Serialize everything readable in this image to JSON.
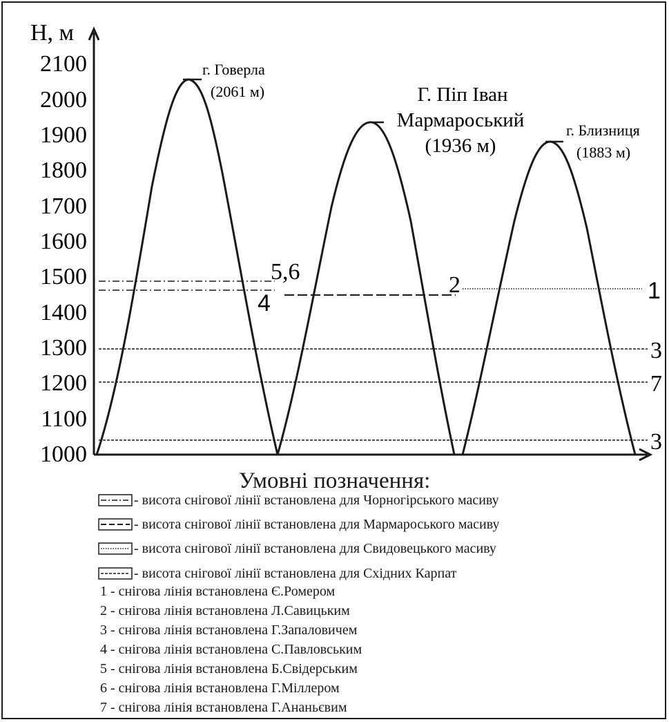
{
  "axis": {
    "y_title": "H, м",
    "y_ticks": [
      "2100",
      "2000",
      "1900",
      "1800",
      "1700",
      "1600",
      "1500",
      "1400",
      "1300",
      "1200",
      "1100",
      "1000"
    ]
  },
  "peaks": [
    {
      "name": "г. Говерла",
      "height_label": "(2061 м)",
      "height_m": 2061
    },
    {
      "name_line1": "Г. Піп Іван",
      "name_line2": "Мармароський",
      "height_label": "(1936 м)",
      "height_m": 1936
    },
    {
      "name": "г. Близниця",
      "height_label": "(1883 м)",
      "height_m": 1883
    }
  ],
  "snowlines": [
    {
      "marker": "5,6",
      "heights_m": [
        1485,
        1460
      ],
      "style": "dash-dot",
      "massif": "Чорногірський"
    },
    {
      "marker": "4",
      "height_m": 1460,
      "style": "dash-dot"
    },
    {
      "marker": "2",
      "height_m": 1450,
      "style": "dashed",
      "massif": "Мармароський"
    },
    {
      "marker": "1",
      "height_m": 1465,
      "style": "dotted",
      "massif": "Свидовецький"
    },
    {
      "marker": "3",
      "height_m": 1295,
      "style": "fine-dash"
    },
    {
      "marker": "7",
      "height_m": 1200,
      "style": "fine-dash"
    },
    {
      "marker": "3",
      "height_m": 1035,
      "style": "fine-dash"
    }
  ],
  "legend": {
    "title": "Умовні позначення:",
    "line_styles": [
      "- висота снігової лінії встановлена для Чорногірського масиву",
      "- висота снігової лінії встановлена для Мармароського масиву",
      "- висота снігової лінії встановлена для Свидовецького масиву",
      "- висота снігової лінії встановлена для Східних Карпат"
    ],
    "authors": [
      "1 - снігова лінія встановлена Є.Ромером",
      "2 - снігова лінія встановлена Л.Савицьким",
      "3 - снігова лінія встановлена Г.Запаловичем",
      "4 - снігова лінія встановлена С.Павловським",
      "5 - снігова лінія встановлена Б.Свідерським",
      "6 - снігова лінія встановлена Г.Міллером",
      "7 - снігова лінія встановлена Г.Ананьєвим"
    ]
  }
}
